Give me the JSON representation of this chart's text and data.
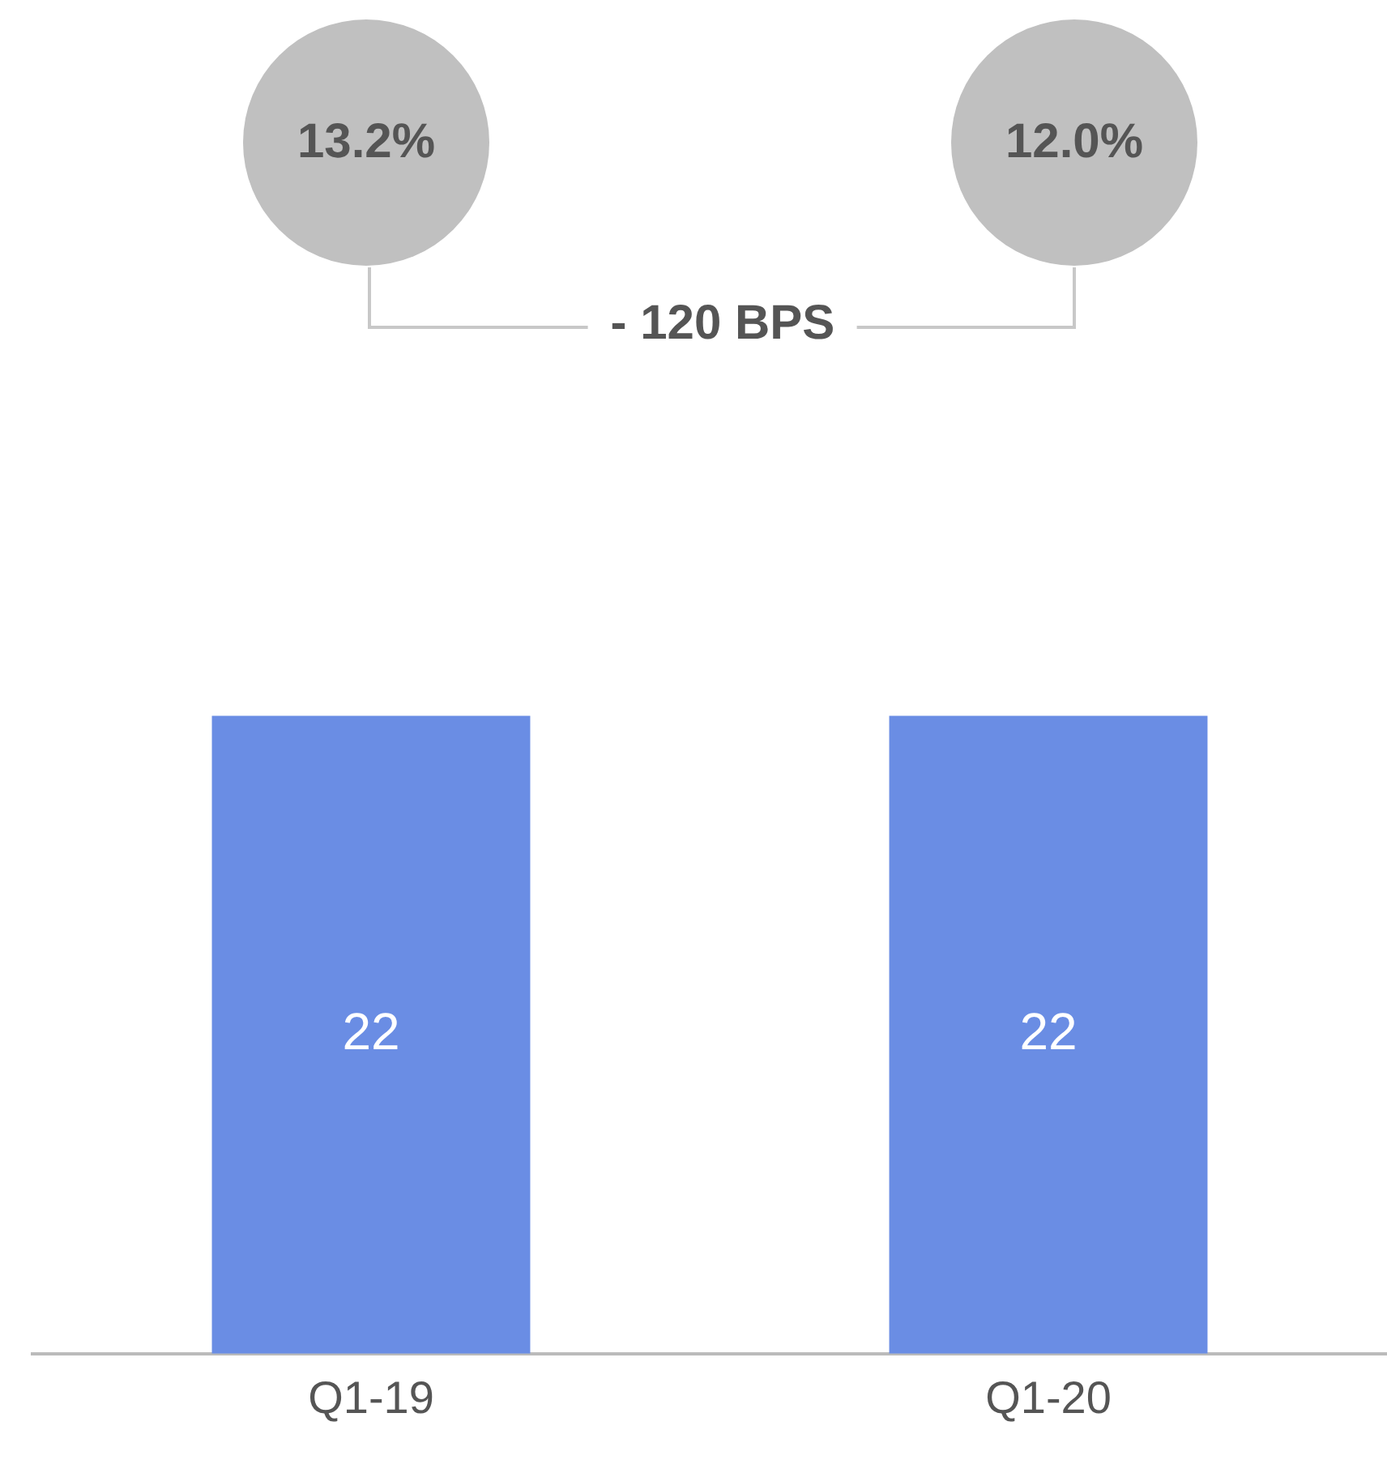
{
  "chart_data": {
    "type": "bar",
    "categories": [
      "Q1-19",
      "Q1-20"
    ],
    "values": [
      22,
      22
    ],
    "color": "#6a8de4",
    "data_labels": true,
    "grid": false,
    "legend": false,
    "annotations": [
      "13.2%",
      "12.0%",
      "- 120 BPS"
    ]
  }
}
